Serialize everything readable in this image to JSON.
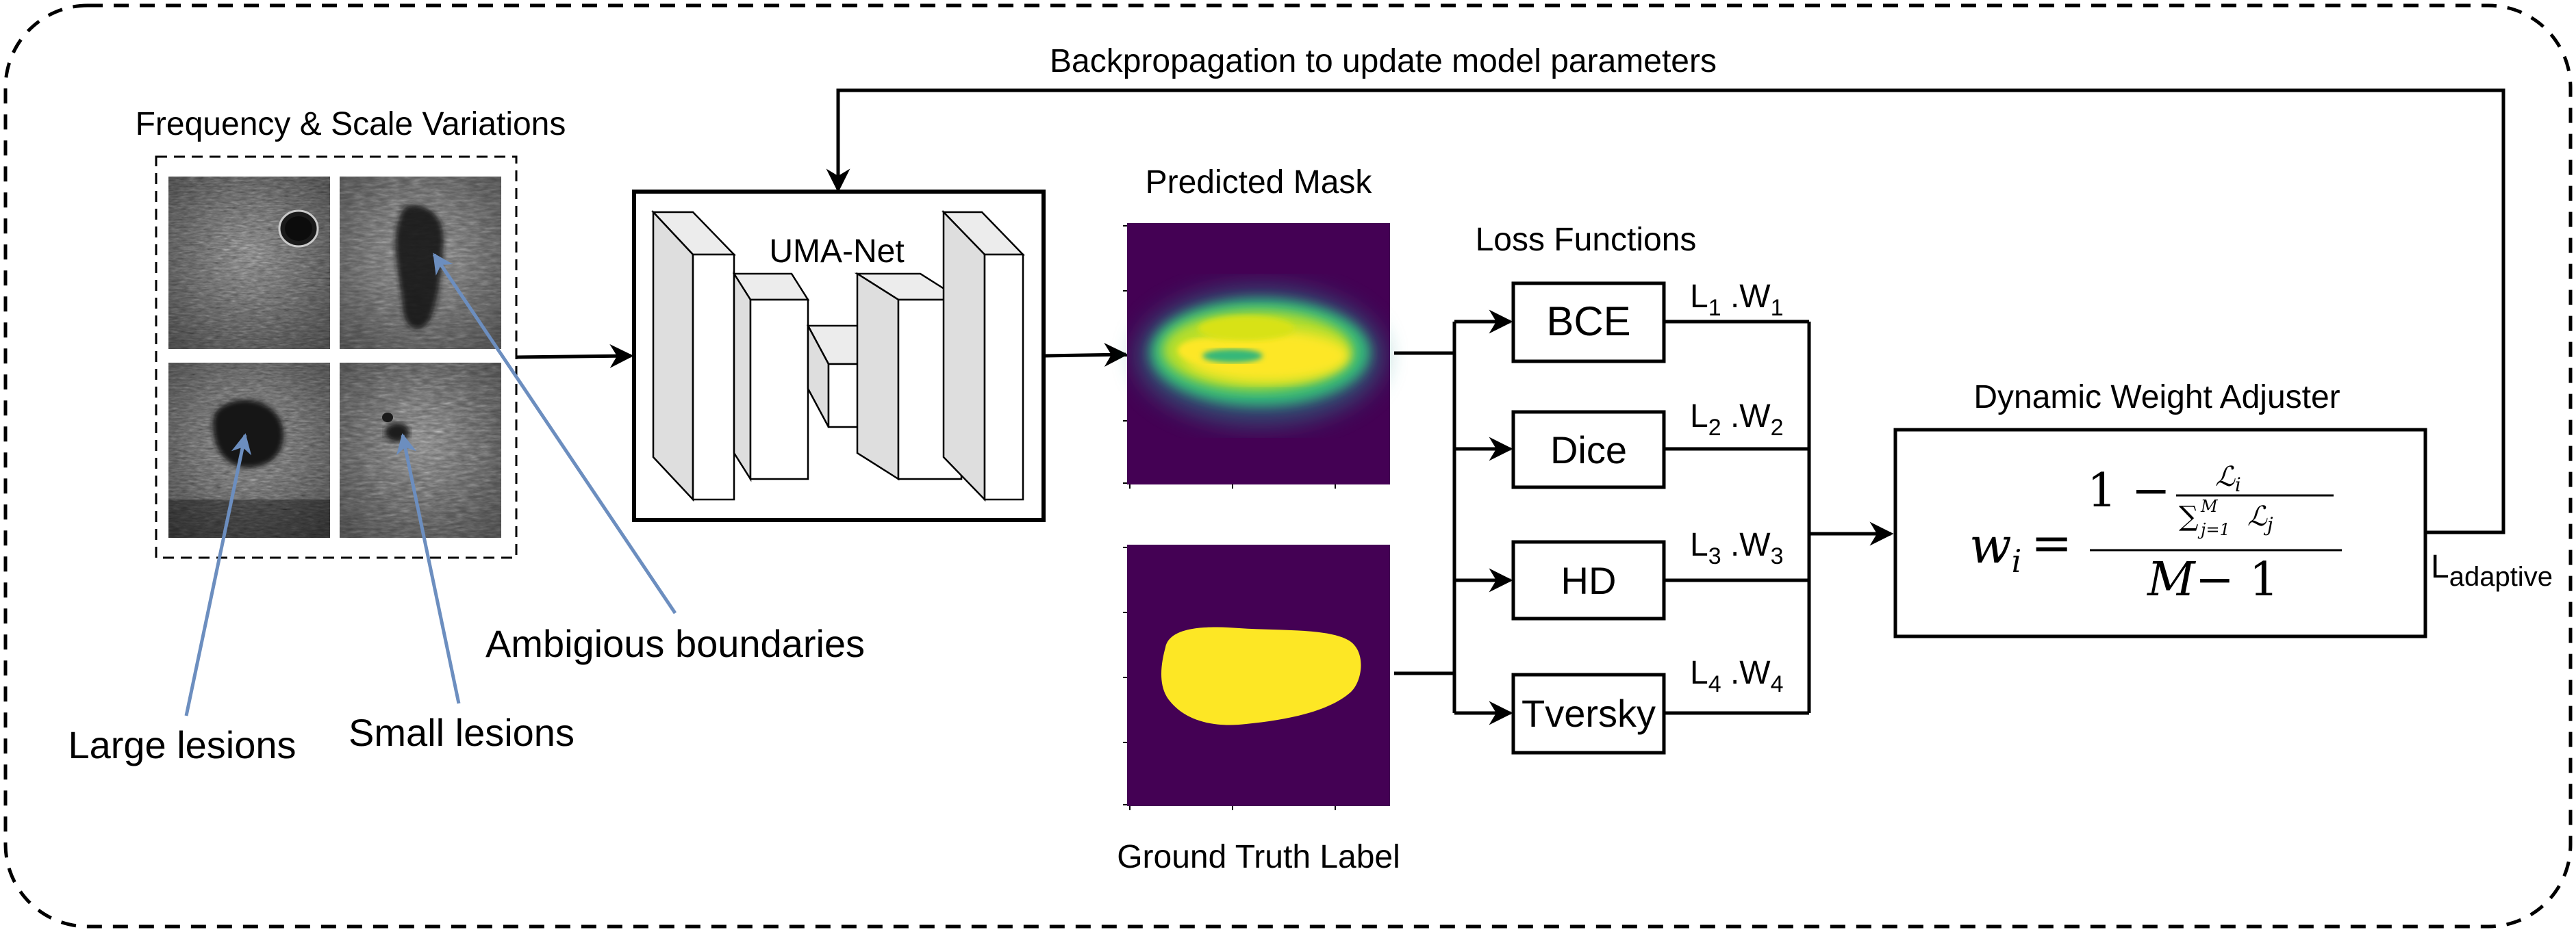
{
  "feedback_label": "Backpropagation to update model parameters",
  "input_panel": {
    "title": "Frequency & Scale Variations",
    "annotations": {
      "ambiguous": "Ambigious boundaries",
      "large": "Large lesions",
      "small": "Small lesions"
    }
  },
  "network": {
    "label": "UMA-Net"
  },
  "predicted": {
    "label": "Predicted Mask"
  },
  "ground_truth": {
    "label": "Ground Truth Label"
  },
  "losses": {
    "title": "Loss Functions",
    "items": [
      {
        "name": "BCE",
        "l": "L",
        "l_sub": "1",
        "sep": " .",
        "w": "W",
        "w_sub": "1"
      },
      {
        "name": "Dice",
        "l": "L",
        "l_sub": "2",
        "sep": " .",
        "w": "W",
        "w_sub": "2"
      },
      {
        "name": "HD",
        "l": "L",
        "l_sub": "3",
        "sep": " .",
        "w": "W",
        "w_sub": "3"
      },
      {
        "name": "Tversky",
        "l": "L",
        "l_sub": "4",
        "sep": " .",
        "w": "W",
        "w_sub": "4"
      }
    ]
  },
  "adjuster": {
    "title": "Dynamic Weight Adjuster",
    "formula": {
      "lhs_var": "w",
      "lhs_sub": "i",
      "equals": "=",
      "num_one": "1 −",
      "frac_num_var": "ℒ",
      "frac_num_sub": "i",
      "frac_den_sum": "∑",
      "frac_den_sup": "M",
      "frac_den_sub": "j=1",
      "frac_den_var": "ℒ",
      "frac_den_var_sub": "j",
      "den_var": "M",
      "den_rest": "− 1"
    }
  },
  "output": {
    "label": "L",
    "label_sub": "adaptive"
  },
  "colors": {
    "arrow": "#000000",
    "annotation_arrow": "#6c8ebf",
    "viridis_dark": "#440154",
    "mask_yellow": "#fde725",
    "mask_green": "#35b779",
    "mask_teal": "#21918c"
  },
  "icons": [
    "ultrasound-image",
    "encoder-decoder-cubes"
  ]
}
